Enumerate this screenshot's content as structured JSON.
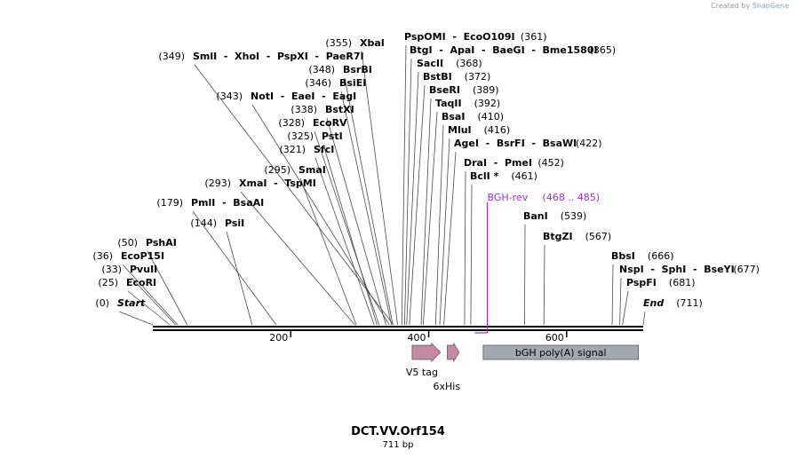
{
  "credit": {
    "prefix": "Created by",
    "brand": "SnapGene"
  },
  "map": {
    "title": "DCT.VV.Orf154",
    "length_label": "711 bp",
    "length_bp": 711,
    "axis_ticks": [
      {
        "bp": 200,
        "label": "200"
      },
      {
        "bp": 400,
        "label": "400"
      },
      {
        "bp": 600,
        "label": "600"
      }
    ],
    "labels": [
      {
        "pos": "(0)",
        "names": "Start",
        "bp": 0,
        "italic": true
      },
      {
        "pos": "(25)",
        "names": "EcoRI",
        "bp": 25
      },
      {
        "pos": "(33)",
        "names": "PvuII",
        "bp": 33
      },
      {
        "pos": "(36)",
        "names": "EcoP15I",
        "bp": 36
      },
      {
        "pos": "(50)",
        "names": "PshAI",
        "bp": 50
      },
      {
        "pos": "(144)",
        "names": "PsiI",
        "bp": 144
      },
      {
        "pos": "(179)",
        "names": "PmlI  -  BsaAI",
        "bp": 179
      },
      {
        "pos": "(293)",
        "names": "XmaI  -  TspMI",
        "bp": 293
      },
      {
        "pos": "(295)",
        "names": "SmaI",
        "bp": 295
      },
      {
        "pos": "(321)",
        "names": "SfcI",
        "bp": 321
      },
      {
        "pos": "(325)",
        "names": "PstI",
        "bp": 325
      },
      {
        "pos": "(328)",
        "names": "EcoRV",
        "bp": 328
      },
      {
        "pos": "(338)",
        "names": "BstXI",
        "bp": 338
      },
      {
        "pos": "(343)",
        "names": "NotI  -  EaeI  -  EagI",
        "bp": 343
      },
      {
        "pos": "(346)",
        "names": "BsiEI",
        "bp": 346
      },
      {
        "pos": "(348)",
        "names": "BsrBI",
        "bp": 348
      },
      {
        "pos": "(349)",
        "names": "SmlI  -  XhoI  -  PspXI  -  PaeR7I",
        "bp": 349
      },
      {
        "pos": "(355)",
        "names": "XbaI",
        "bp": 355
      },
      {
        "pos": "(361)",
        "names": "PspOMI  -  EcoO109I",
        "bp": 361
      },
      {
        "pos": "(365)",
        "names": "BtgI  -  ApaI  -  BaeGI  -  Bme1580I",
        "bp": 365
      },
      {
        "pos": "(368)",
        "names": "SacII",
        "bp": 368
      },
      {
        "pos": "(372)",
        "names": "BstBI",
        "bp": 372
      },
      {
        "pos": "(389)",
        "names": "BseRI",
        "bp": 389
      },
      {
        "pos": "(392)",
        "names": "TaqII",
        "bp": 392
      },
      {
        "pos": "(410)",
        "names": "BsaI",
        "bp": 410
      },
      {
        "pos": "(416)",
        "names": "MluI",
        "bp": 416
      },
      {
        "pos": "(422)",
        "names": "AgeI  -  BsrFI  -  BsaWI",
        "bp": 422
      },
      {
        "pos": "(452)",
        "names": "DraI  -  PmeI",
        "bp": 452
      },
      {
        "pos": "(461)",
        "names": "BclI *",
        "bp": 461
      },
      {
        "pos": "(539)",
        "names": "BanI",
        "bp": 539
      },
      {
        "pos": "(567)",
        "names": "BtgZI",
        "bp": 567
      },
      {
        "pos": "(666)",
        "names": "BbsI",
        "bp": 666
      },
      {
        "pos": "(677)",
        "names": "NspI  -  SphI  -  BseYI",
        "bp": 677
      },
      {
        "pos": "(681)",
        "names": "PspFI",
        "bp": 681
      },
      {
        "pos": "(711)",
        "names": "End",
        "bp": 711,
        "italic": true
      }
    ],
    "primer": {
      "name": "BGH-rev",
      "range": "(468 .. 485)",
      "start_bp": 468,
      "end_bp": 485,
      "color": "#9b30c8"
    },
    "features": [
      {
        "name": "V5 tag",
        "type": "arrow",
        "start_bp": 376,
        "end_bp": 417,
        "color": "#c58aa3"
      },
      {
        "name": "6xHis",
        "type": "arrow",
        "start_bp": 427,
        "end_bp": 444,
        "color": "#c58aa3"
      },
      {
        "name": "bGH poly(A) signal",
        "type": "box",
        "start_bp": 479,
        "end_bp": 704,
        "color": "#a4a9b0"
      }
    ]
  }
}
